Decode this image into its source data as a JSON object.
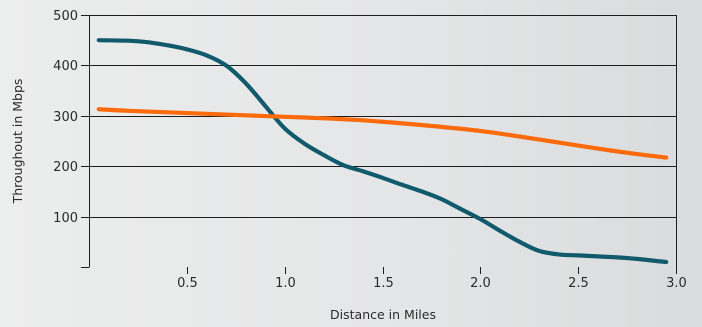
{
  "chart_data": {
    "type": "line",
    "xlabel": "Distance in Miles",
    "ylabel": "Throughout in Mbps",
    "xlim": [
      0,
      3.0
    ],
    "ylim": [
      0,
      500
    ],
    "x_ticks": [
      0.5,
      1.0,
      1.5,
      2.0,
      2.5,
      3.0
    ],
    "x_tick_labels": [
      "0.5",
      "1.0",
      "1.5",
      "2.0",
      "2.5",
      "3.0"
    ],
    "y_ticks": [
      100,
      200,
      300,
      400,
      500
    ],
    "y_tick_labels": [
      "100",
      "200",
      "300",
      "400",
      "500"
    ],
    "grid": "horizontal",
    "series": [
      {
        "color": "#115a6c",
        "x": [
          0.05,
          0.2,
          0.3,
          0.4,
          0.5,
          0.6,
          0.7,
          0.8,
          0.9,
          1.0,
          1.1,
          1.2,
          1.3,
          1.4,
          1.5,
          1.6,
          1.7,
          1.8,
          1.9,
          2.0,
          2.1,
          2.2,
          2.3,
          2.4,
          2.5,
          2.6,
          2.7,
          2.8,
          2.9,
          2.95
        ],
        "values": [
          450,
          449,
          446,
          440,
          432,
          420,
          400,
          365,
          320,
          275,
          245,
          222,
          202,
          190,
          177,
          163,
          150,
          135,
          115,
          95,
          72,
          50,
          32,
          25,
          23,
          21,
          19,
          16,
          12,
          10
        ]
      },
      {
        "color": "#fb6a0b",
        "x": [
          0.05,
          0.2,
          0.4,
          0.6,
          0.8,
          1.0,
          1.2,
          1.4,
          1.6,
          1.8,
          2.0,
          2.2,
          2.4,
          2.6,
          2.8,
          2.95
        ],
        "values": [
          313,
          310,
          307,
          304,
          301,
          298,
          295,
          291,
          285,
          278,
          270,
          259,
          247,
          235,
          224,
          217
        ]
      }
    ]
  }
}
